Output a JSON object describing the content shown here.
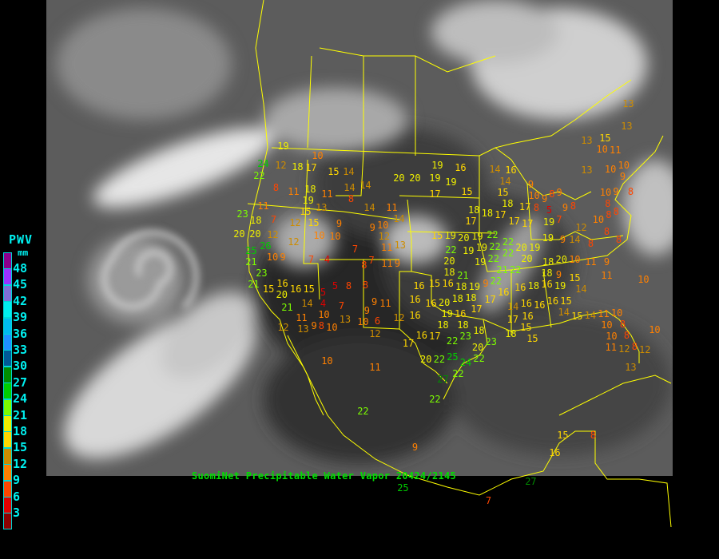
{
  "caption": "SuomiNet Precipitable Water Vapor   20424/2145",
  "legend": {
    "title": "PWV",
    "unit": "mm",
    "labels": [
      "48",
      "45",
      "42",
      "39",
      "36",
      "33",
      "30",
      "27",
      "24",
      "21",
      "18",
      "15",
      "12",
      "9",
      "6",
      "3"
    ],
    "colors": [
      "#8c008c",
      "#9932ff",
      "#7d6fd6",
      "#00eeee",
      "#00bbee",
      "#1e90ff",
      "#005a96",
      "#008c00",
      "#00cd00",
      "#7cfc00",
      "#eeee00",
      "#ffd700",
      "#cd8c00",
      "#ff8000",
      "#ff4500",
      "#e00000",
      "#8b0000"
    ]
  },
  "map_colors": {
    "borders": "#ffff00",
    "land": "#2e2e2e",
    "ocean": "#585858",
    "cloud": "#e8e8e8"
  },
  "stations": [
    19,
    24,
    22,
    12,
    18,
    17,
    10,
    15,
    14,
    8,
    11,
    18,
    19,
    15,
    13,
    11,
    14,
    14,
    8,
    14,
    11,
    14,
    11,
    23,
    18,
    7,
    12,
    15,
    9,
    10,
    10,
    20,
    20,
    12,
    12,
    9,
    12,
    11,
    10,
    13,
    11,
    9,
    4,
    7,
    9,
    10,
    25,
    21,
    23,
    26,
    21,
    20,
    15,
    16,
    16,
    15,
    14,
    21,
    11,
    12,
    13,
    5,
    8,
    5,
    4,
    7,
    10,
    8,
    13,
    9,
    10,
    8,
    9,
    11,
    9,
    12,
    10,
    6,
    12,
    10,
    11,
    7,
    8,
    7,
    20,
    20,
    17,
    19,
    16,
    19,
    19,
    15,
    18,
    17,
    15,
    19,
    20,
    19,
    22,
    19,
    19,
    22,
    20,
    18,
    22,
    22,
    19,
    22,
    21,
    22,
    22,
    20,
    15,
    16,
    21,
    19,
    9,
    16,
    16,
    16,
    16,
    20,
    19,
    18,
    18,
    18,
    17,
    16,
    17,
    17,
    18,
    16,
    18,
    18,
    22,
    23,
    22,
    20,
    25,
    24,
    22,
    20,
    23,
    27,
    22,
    22,
    22,
    9,
    17,
    16,
    16,
    18,
    16,
    19,
    18,
    9,
    15,
    14,
    14,
    17,
    16,
    16,
    16,
    15,
    16,
    14,
    15,
    14,
    11,
    10,
    10,
    10,
    8,
    8,
    8,
    11,
    12,
    12,
    13,
    10,
    18,
    15,
    15,
    16,
    14,
    14,
    15,
    17,
    18,
    10,
    17,
    17,
    19,
    19,
    9,
    14,
    12,
    9,
    9,
    8,
    9,
    8,
    5,
    9,
    7,
    8,
    13,
    10,
    9,
    10,
    8,
    10,
    8,
    8,
    9,
    11,
    10,
    20,
    18,
    20,
    19,
    11,
    8,
    8,
    8,
    13,
    15,
    11,
    13,
    13,
    10,
    10,
    9,
    8,
    10,
    22,
    17,
    18,
    15,
    16,
    8,
    7,
    27,
    25
  ]
}
